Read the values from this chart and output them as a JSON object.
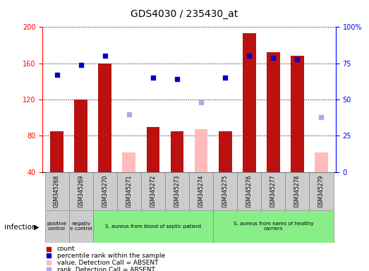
{
  "title": "GDS4030 / 235430_at",
  "samples": [
    "GSM345268",
    "GSM345269",
    "GSM345270",
    "GSM345271",
    "GSM345272",
    "GSM345273",
    "GSM345274",
    "GSM345275",
    "GSM345276",
    "GSM345277",
    "GSM345278",
    "GSM345279"
  ],
  "count_values": [
    85,
    120,
    160,
    null,
    90,
    85,
    null,
    85,
    193,
    172,
    168,
    null
  ],
  "count_absent": [
    null,
    null,
    null,
    62,
    null,
    null,
    87,
    null,
    null,
    null,
    null,
    62
  ],
  "rank_present": [
    67,
    74,
    80,
    null,
    65,
    64,
    null,
    65,
    80,
    79,
    78,
    null
  ],
  "rank_absent": [
    null,
    null,
    null,
    40,
    null,
    null,
    48,
    null,
    null,
    null,
    null,
    38
  ],
  "ylim_left": [
    40,
    200
  ],
  "ylim_right": [
    0,
    100
  ],
  "yticks_left": [
    40,
    80,
    120,
    160,
    200
  ],
  "yticks_right": [
    0,
    25,
    50,
    75,
    100
  ],
  "bar_width": 0.55,
  "bar_color_present": "#bb1111",
  "bar_color_absent": "#ffbbbb",
  "dot_color_present": "#0000cc",
  "dot_color_absent": "#aaaaee",
  "dot_size_present": 5,
  "dot_size_absent": 4,
  "group_labels": [
    "positive\ncontrol",
    "negativ\ne control",
    "S. aureus from blood of septic patient",
    "S. aureus from nares of healthy\ncarriers"
  ],
  "group_ranges": [
    [
      0,
      1
    ],
    [
      1,
      2
    ],
    [
      2,
      7
    ],
    [
      7,
      12
    ]
  ],
  "group_colors": [
    "#cccccc",
    "#cccccc",
    "#88ee88",
    "#88ee88"
  ],
  "infection_label": "infection",
  "legend_items": [
    {
      "label": "count",
      "color": "#bb1111"
    },
    {
      "label": "percentile rank within the sample",
      "color": "#0000cc"
    },
    {
      "label": "value, Detection Call = ABSENT",
      "color": "#ffbbbb"
    },
    {
      "label": "rank, Detection Call = ABSENT",
      "color": "#aaaaee"
    }
  ],
  "fig_width": 5.23,
  "fig_height": 3.84,
  "dpi": 100
}
